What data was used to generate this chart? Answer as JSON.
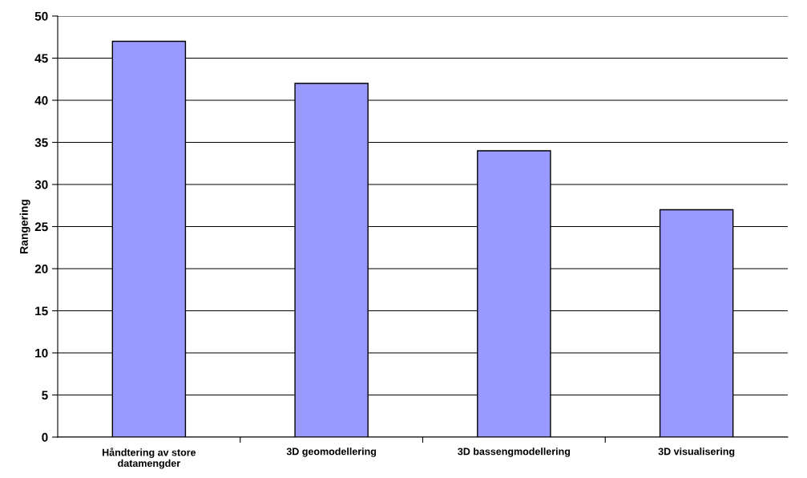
{
  "chart_data": {
    "type": "bar",
    "ylabel": "Rangering",
    "categories": [
      "Håndtering av store\ndatamengder",
      "3D geomodellering",
      "3D bassengmodellering",
      "3D visualisering"
    ],
    "values": [
      47,
      42,
      34,
      27
    ],
    "color": "#9999ff",
    "ylim": [
      0,
      50
    ],
    "yticks": [
      0,
      5,
      10,
      15,
      20,
      25,
      30,
      35,
      40,
      45,
      50
    ],
    "grid": "y"
  }
}
